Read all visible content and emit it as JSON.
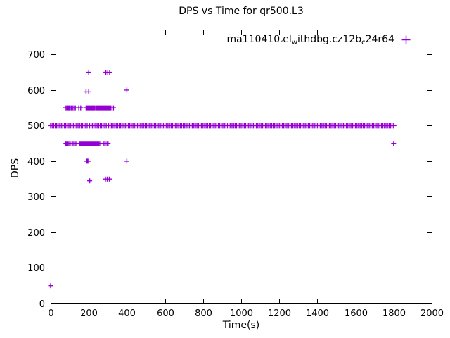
{
  "chart": {
    "title": "DPS vs Time for qr500.L3",
    "xlabel": "Time(s)",
    "ylabel": "DPS"
  },
  "legend": {
    "label_plain": "ma110410_rel_withdbg.cz12b_c24r64",
    "segments": [
      {
        "text": "ma110410",
        "sub": false
      },
      {
        "text": "r",
        "sub": true
      },
      {
        "text": "el",
        "sub": false
      },
      {
        "text": "w",
        "sub": true
      },
      {
        "text": "ithdbg.cz12b",
        "sub": false
      },
      {
        "text": "c",
        "sub": true
      },
      {
        "text": "24r64",
        "sub": false
      }
    ]
  },
  "chart_data": {
    "type": "scatter",
    "title": "DPS vs Time for qr500.L3",
    "xlabel": "Time(s)",
    "ylabel": "DPS",
    "xlim": [
      0,
      2000
    ],
    "ylim": [
      0,
      770
    ],
    "xticks": [
      0,
      200,
      400,
      600,
      800,
      1000,
      1200,
      1400,
      1600,
      1800,
      2000
    ],
    "yticks": [
      0,
      100,
      200,
      300,
      400,
      500,
      600,
      700
    ],
    "grid": false,
    "legend_position": "top-right",
    "marker": {
      "shape": "plus",
      "color": "#9400d3"
    },
    "series": [
      {
        "name": "ma110410_rel_withdbg.cz12b_c24r64",
        "runs": [
          {
            "y": 500,
            "x_from": 0,
            "x_to": 128,
            "step": 8
          },
          {
            "y": 500,
            "x_from": 136,
            "x_to": 176,
            "step": 8
          },
          {
            "y": 500,
            "x_from": 184,
            "x_to": 196,
            "step": 8
          },
          {
            "y": 500,
            "x_from": 204,
            "x_to": 296,
            "step": 8
          },
          {
            "y": 500,
            "x_from": 304,
            "x_to": 1800,
            "step": 8
          }
        ],
        "points": [
          [
            0,
            50
          ],
          [
            78,
            550
          ],
          [
            84,
            550
          ],
          [
            88,
            550
          ],
          [
            92,
            550
          ],
          [
            97,
            550
          ],
          [
            102,
            550
          ],
          [
            108,
            550
          ],
          [
            115,
            550
          ],
          [
            122,
            550
          ],
          [
            130,
            550
          ],
          [
            148,
            550
          ],
          [
            158,
            550
          ],
          [
            186,
            550
          ],
          [
            190,
            550
          ],
          [
            194,
            550
          ],
          [
            198,
            550
          ],
          [
            203,
            550
          ],
          [
            208,
            550
          ],
          [
            213,
            550
          ],
          [
            218,
            550
          ],
          [
            222,
            550
          ],
          [
            227,
            550
          ],
          [
            232,
            550
          ],
          [
            238,
            550
          ],
          [
            243,
            550
          ],
          [
            248,
            550
          ],
          [
            253,
            550
          ],
          [
            258,
            550
          ],
          [
            263,
            550
          ],
          [
            268,
            550
          ],
          [
            273,
            550
          ],
          [
            278,
            550
          ],
          [
            283,
            550
          ],
          [
            288,
            550
          ],
          [
            293,
            550
          ],
          [
            298,
            550
          ],
          [
            303,
            550
          ],
          [
            308,
            550
          ],
          [
            315,
            550
          ],
          [
            322,
            550
          ],
          [
            330,
            550
          ],
          [
            80,
            450
          ],
          [
            85,
            450
          ],
          [
            90,
            450
          ],
          [
            96,
            450
          ],
          [
            103,
            450
          ],
          [
            112,
            450
          ],
          [
            118,
            450
          ],
          [
            126,
            450
          ],
          [
            133,
            450
          ],
          [
            150,
            450
          ],
          [
            155,
            450
          ],
          [
            160,
            450
          ],
          [
            165,
            450
          ],
          [
            170,
            450
          ],
          [
            175,
            450
          ],
          [
            180,
            450
          ],
          [
            185,
            450
          ],
          [
            190,
            450
          ],
          [
            195,
            450
          ],
          [
            200,
            450
          ],
          [
            205,
            450
          ],
          [
            210,
            450
          ],
          [
            215,
            450
          ],
          [
            220,
            450
          ],
          [
            225,
            450
          ],
          [
            230,
            450
          ],
          [
            235,
            450
          ],
          [
            240,
            450
          ],
          [
            245,
            450
          ],
          [
            252,
            450
          ],
          [
            258,
            450
          ],
          [
            280,
            450
          ],
          [
            287,
            450
          ],
          [
            296,
            450
          ],
          [
            302,
            450
          ],
          [
            1800,
            450
          ],
          [
            186,
            595
          ],
          [
            200,
            595
          ],
          [
            400,
            600
          ],
          [
            200,
            650
          ],
          [
            290,
            650
          ],
          [
            300,
            650
          ],
          [
            310,
            650
          ],
          [
            188,
            400
          ],
          [
            193,
            400
          ],
          [
            199,
            400
          ],
          [
            400,
            400
          ],
          [
            205,
            345
          ],
          [
            288,
            350
          ],
          [
            297,
            350
          ],
          [
            308,
            350
          ]
        ]
      }
    ]
  }
}
